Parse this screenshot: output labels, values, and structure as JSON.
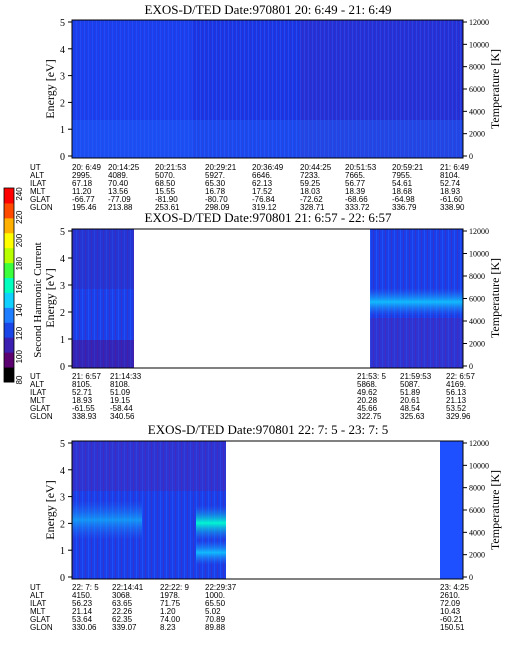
{
  "colorbar": {
    "label": "Second Harmonic Current",
    "ticks": [
      "240",
      "220",
      "200",
      "180",
      "160",
      "140",
      "120",
      "100",
      "80"
    ],
    "colors": [
      "#000000",
      "#5a0070",
      "#3a1fb0",
      "#1a46e8",
      "#1f7dff",
      "#10d0ff",
      "#00ffbf",
      "#3cff3c",
      "#b8ff00",
      "#ffff00",
      "#ffb000",
      "#ff4a00",
      "#ff0000"
    ]
  },
  "panels": [
    {
      "title": "EXOS-D/TED   Date:970801  20: 6:49 - 21: 6:49",
      "ylabel": "Energy [eV]",
      "y2label": "Temperature [K]",
      "yticks": [
        "5",
        "4",
        "3",
        "2",
        "1",
        "0"
      ],
      "y2ticks": [
        "12000",
        "10000",
        "8000",
        "6000",
        "4000",
        "2000",
        "0"
      ],
      "table": {
        "rows": [
          {
            "label": "UT",
            "cols": [
              "20: 6:49",
              "20:14:25",
              "20:21:53",
              "20:29:21",
              "20:36:49",
              "20:44:25",
              "20:51:53",
              "20:59:21",
              "21: 6:49"
            ]
          },
          {
            "label": "ALT",
            "cols": [
              "2995.",
              "4089.",
              "5070.",
              "5927.",
              "6646.",
              "7233.",
              "7665.",
              "7955.",
              "8104."
            ]
          },
          {
            "label": "ILAT",
            "cols": [
              "67.18",
              "70.40",
              "68.50",
              "65.30",
              "62.13",
              "59.25",
              "56.77",
              "54.61",
              "52.74"
            ]
          },
          {
            "label": "MLT",
            "cols": [
              "11.20",
              "13.56",
              "15.55",
              "16.78",
              "17.52",
              "18.03",
              "18.39",
              "18.68",
              "18.93"
            ]
          },
          {
            "label": "GLAT",
            "cols": [
              "-66.77",
              "-77.09",
              "-81.90",
              "-80.70",
              "-76.84",
              "-72.62",
              "-68.66",
              "-64.98",
              "-61.60"
            ]
          },
          {
            "label": "GLON",
            "cols": [
              "195.46",
              "213.88",
              "253.61",
              "298.09",
              "319.12",
              "328.71",
              "333.72",
              "336.79",
              "338.90"
            ]
          }
        ]
      }
    },
    {
      "title": "EXOS-D/TED   Date:970801  21: 6:57 - 22: 6:57",
      "ylabel": "Energy [eV]",
      "y2label": "Temperature [K]",
      "yticks": [
        "5",
        "4",
        "3",
        "2",
        "1",
        "0"
      ],
      "y2ticks": [
        "12000",
        "10000",
        "8000",
        "6000",
        "4000",
        "2000",
        "0"
      ],
      "table": {
        "rows": [
          {
            "label": "UT",
            "cols": [
              "21: 6:57",
              "21:14:33",
              "21:53: 5",
              "21:59:53",
              "22: 6:57"
            ]
          },
          {
            "label": "ALT",
            "cols": [
              "8105.",
              "8108.",
              "5868.",
              "5087.",
              "4169."
            ]
          },
          {
            "label": "ILAT",
            "cols": [
              "52.71",
              "51.09",
              "49.62",
              "51.89",
              "56.13"
            ]
          },
          {
            "label": "MLT",
            "cols": [
              "18.93",
              "19.15",
              "20.28",
              "20.61",
              "21.13"
            ]
          },
          {
            "label": "GLAT",
            "cols": [
              "-61.55",
              "-58.44",
              "45.66",
              "48.54",
              "53.52"
            ]
          },
          {
            "label": "GLON",
            "cols": [
              "338.93",
              "340.56",
              "322.75",
              "325.63",
              "329.96"
            ]
          }
        ]
      }
    },
    {
      "title": "EXOS-D/TED   Date:970801  22: 7: 5 - 23: 7: 5",
      "ylabel": "Energy [eV]",
      "y2label": "Temperature [K]",
      "yticks": [
        "5",
        "4",
        "3",
        "2",
        "1",
        "0"
      ],
      "y2ticks": [
        "12000",
        "10000",
        "8000",
        "6000",
        "4000",
        "2000",
        "0"
      ],
      "table": {
        "rows": [
          {
            "label": "UT",
            "cols": [
              "22: 7: 5",
              "22:14:41",
              "22:22: 9",
              "22:29:37",
              "23: 4:25"
            ]
          },
          {
            "label": "ALT",
            "cols": [
              "4150.",
              "3068.",
              "1978.",
              "1000.",
              "2610."
            ]
          },
          {
            "label": "ILAT",
            "cols": [
              "56.23",
              "63.65",
              "71.75",
              "65.50",
              "72.09"
            ]
          },
          {
            "label": "MLT",
            "cols": [
              "21.14",
              "22.26",
              "1.20",
              "5.02",
              "10.43"
            ]
          },
          {
            "label": "GLAT",
            "cols": [
              "53.64",
              "62.35",
              "74.00",
              "70.89",
              "-60.21"
            ]
          },
          {
            "label": "GLON",
            "cols": [
              "330.06",
              "339.07",
              "8.23",
              "89.88",
              "150.51"
            ]
          }
        ]
      }
    }
  ],
  "chart_data": [
    {
      "type": "heatmap",
      "title": "EXOS-D/TED   Date:970801  20: 6:49 - 21: 6:49",
      "ylabel": "Energy [eV]",
      "y2label": "Temperature [K]",
      "ylim": [
        0,
        5
      ],
      "y2lim": [
        0,
        12000
      ],
      "colorbar_label": "Second Harmonic Current",
      "colorbar_range": [
        80,
        240
      ],
      "data_coverage": "full"
    },
    {
      "type": "heatmap",
      "title": "EXOS-D/TED   Date:970801  21: 6:57 - 22: 6:57",
      "ylabel": "Energy [eV]",
      "y2label": "Temperature [K]",
      "ylim": [
        0,
        5
      ],
      "y2lim": [
        0,
        12000
      ],
      "colorbar_range": [
        80,
        240
      ],
      "data_coverage": "segments"
    },
    {
      "type": "heatmap",
      "title": "EXOS-D/TED   Date:970801  22: 7: 5 - 23: 7: 5",
      "ylabel": "Energy [eV]",
      "y2label": "Temperature [K]",
      "ylim": [
        0,
        5
      ],
      "y2lim": [
        0,
        12000
      ],
      "colorbar_range": [
        80,
        240
      ],
      "data_coverage": "segments"
    }
  ]
}
